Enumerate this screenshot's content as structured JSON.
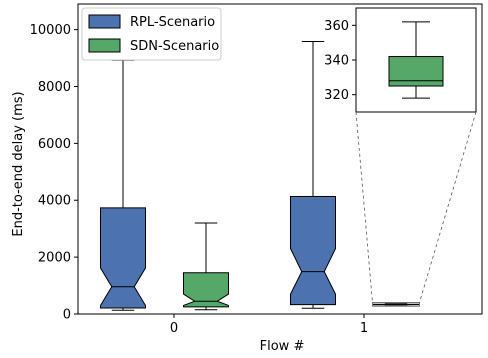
{
  "chart_data": {
    "type": "boxplot",
    "xlabel": "Flow #",
    "ylabel": "End-to-end delay (ms)",
    "categories": [
      "0",
      "1"
    ],
    "ylim": [
      0,
      10900
    ],
    "yticks": [
      0,
      2000,
      4000,
      6000,
      8000,
      10000
    ],
    "legend": {
      "placement": "top-left"
    },
    "series": [
      {
        "name": "RPL-Scenario",
        "color": "#4c72b0",
        "boxes": [
          {
            "category": "0",
            "min": 130,
            "q1": 210,
            "median": 960,
            "q3": 3730,
            "max": 8920,
            "notch_low": 300,
            "notch_high": 1620
          },
          {
            "category": "1",
            "min": 200,
            "q1": 330,
            "median": 1490,
            "q3": 4130,
            "max": 9580,
            "notch_low": 700,
            "notch_high": 2300
          }
        ]
      },
      {
        "name": "SDN-Scenario",
        "color": "#55a868",
        "boxes": [
          {
            "category": "0",
            "min": 150,
            "q1": 250,
            "median": 450,
            "q3": 1450,
            "max": 3200,
            "notch_low": 300,
            "notch_high": 700
          },
          {
            "category": "1",
            "min": 318,
            "q1": 325,
            "median": 328,
            "q3": 342,
            "max": 362,
            "notch_low": 324,
            "notch_high": 332
          }
        ]
      }
    ],
    "inset": {
      "series": "SDN-Scenario",
      "category": "1",
      "ylim": [
        310,
        370
      ],
      "yticks": [
        320,
        340,
        360
      ]
    }
  }
}
